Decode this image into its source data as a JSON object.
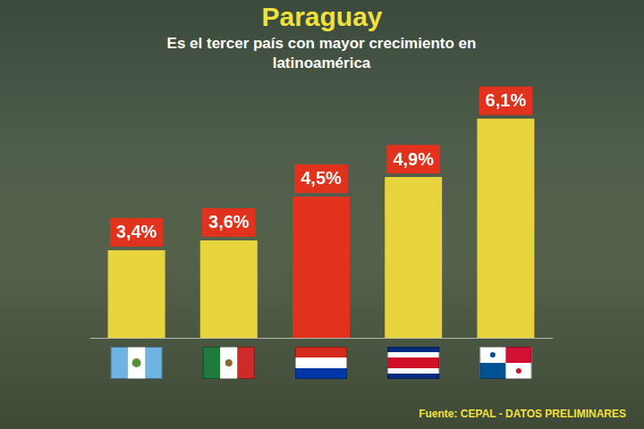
{
  "chart_data": {
    "type": "bar",
    "title": "Paraguay",
    "subtitle": "Es el tercer país con mayor crecimiento en latinoamérica",
    "categories": [
      null,
      null,
      null,
      null,
      null
    ],
    "values": [
      3.4,
      3.6,
      4.5,
      4.9,
      6.1
    ],
    "value_labels": [
      "3,4%",
      "3,6%",
      "4,5%",
      "4,9%",
      "6,1%"
    ],
    "colors": [
      "#e8d43c",
      "#e8d43c",
      "#e0321c",
      "#e8d43c",
      "#e8d43c"
    ],
    "ylim": [
      1.6,
      6.7
    ],
    "data_labels": true,
    "tick_labels": false,
    "grid": false,
    "annotations": [
      "Fuente: CEPAL - DATOS PRELIMINARES"
    ]
  }
}
